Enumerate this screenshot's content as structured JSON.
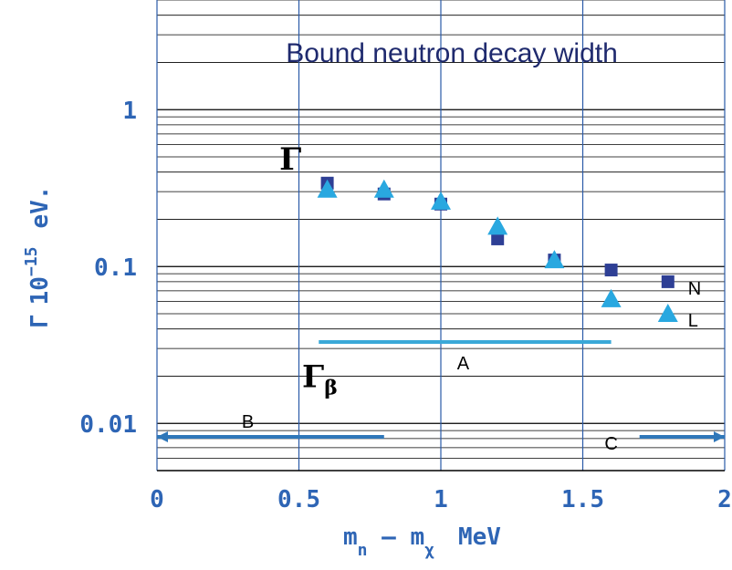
{
  "chart_data": {
    "type": "scatter",
    "title": "Bound neutron decay width",
    "xlabel": {
      "base": "m",
      "sub1": "n",
      "mid": " – m",
      "sub2": "χ",
      "unit": "MeV"
    },
    "ylabel": {
      "symbol": "Γ",
      "power": "10",
      "exp": "−15",
      "unit": "eV."
    },
    "xlim": [
      0,
      2
    ],
    "ylim": [
      0.005,
      5
    ],
    "yscale": "log",
    "grid": true,
    "xticks": [
      {
        "value": 0,
        "label": "0"
      },
      {
        "value": 0.5,
        "label": "0.5"
      },
      {
        "value": 1,
        "label": "1"
      },
      {
        "value": 1.5,
        "label": "1.5"
      },
      {
        "value": 2,
        "label": "2"
      }
    ],
    "yticks": [
      {
        "value": 1,
        "label": "1"
      },
      {
        "value": 0.1,
        "label": "0.1"
      },
      {
        "value": 0.01,
        "label": "0.01"
      }
    ],
    "series": [
      {
        "name": "N",
        "marker": "square",
        "color": "#2e3f95",
        "x": [
          0.6,
          0.8,
          1.0,
          1.2,
          1.4,
          1.6,
          1.8
        ],
        "y": [
          0.34,
          0.29,
          0.25,
          0.15,
          0.11,
          0.095,
          0.08
        ]
      },
      {
        "name": "L",
        "marker": "triangle",
        "color": "#29a8e0",
        "x": [
          0.6,
          0.8,
          1.0,
          1.2,
          1.4,
          1.6,
          1.8
        ],
        "y": [
          0.31,
          0.31,
          0.26,
          0.18,
          0.11,
          0.062,
          0.05
        ]
      }
    ],
    "annotations": [
      {
        "id": "gamma",
        "symbol": "Γ",
        "x": 0.47,
        "y": 0.45
      },
      {
        "id": "gamma-beta",
        "symbol": "Γ",
        "sub": "β",
        "x": 0.55,
        "y": 0.02
      },
      {
        "id": "A",
        "label": "A",
        "type": "segment",
        "x1": 0.57,
        "x2": 1.6,
        "y": 0.033,
        "color": "#3aa8d8"
      },
      {
        "id": "B",
        "label": "B",
        "type": "arrow-left",
        "x1": 0.8,
        "x2": 0.0,
        "y": 0.0082,
        "color": "#2f77b9"
      },
      {
        "id": "C",
        "label": "C",
        "type": "arrow-right",
        "x1": 1.7,
        "x2": 2.0,
        "y": 0.0082,
        "color": "#2f77b9"
      }
    ]
  }
}
